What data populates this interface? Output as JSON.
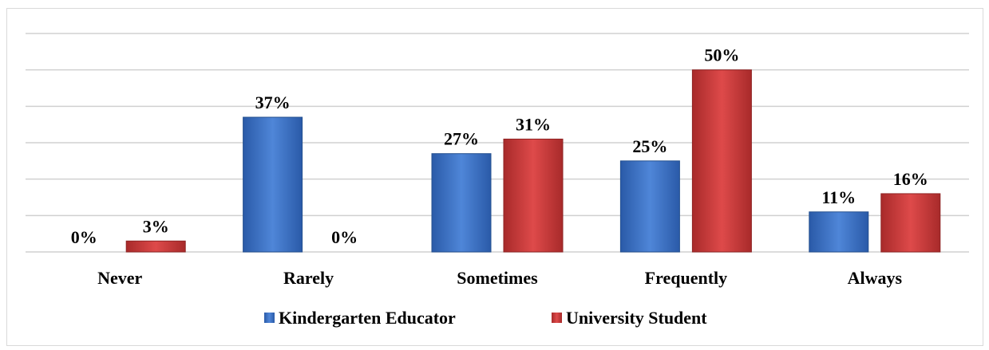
{
  "chart_data": {
    "type": "bar",
    "categories": [
      "Never",
      "Rarely",
      "Sometimes",
      "Frequently",
      "Always"
    ],
    "series": [
      {
        "name": "Kindergarten Educator",
        "values": [
          0,
          37,
          27,
          25,
          11
        ],
        "labels": [
          "0%",
          "37%",
          "27%",
          "25%",
          "11%"
        ],
        "color": "#3a6fc4"
      },
      {
        "name": "University Student",
        "values": [
          3,
          0,
          31,
          50,
          16
        ],
        "labels": [
          "3%",
          "0%",
          "31%",
          "50%",
          "16%"
        ],
        "color": "#c93a3a"
      }
    ],
    "ylim": [
      0,
      60
    ],
    "grid": true,
    "legend_position": "bottom",
    "title": "",
    "xlabel": "",
    "ylabel": ""
  }
}
